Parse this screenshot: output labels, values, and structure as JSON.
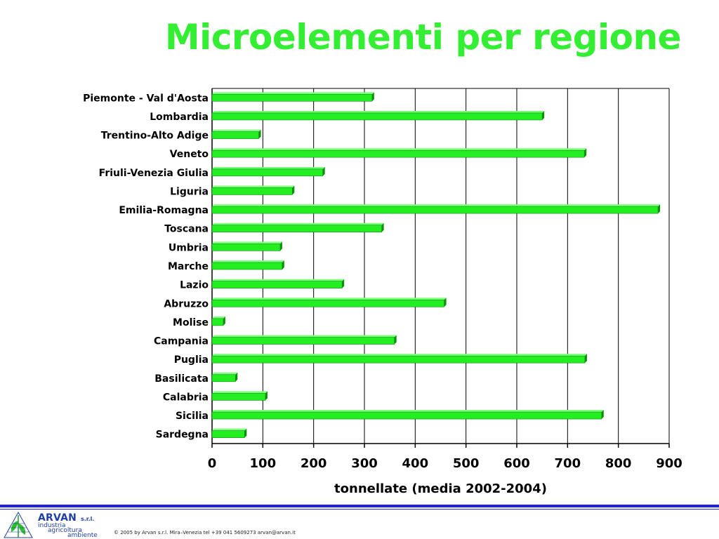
{
  "title": "Microelementi per regione",
  "colors": {
    "title": "#33ee33",
    "bar": "#22ee22",
    "bar_shade": "#0d8f0d",
    "axis": "#000000",
    "footer": "#1f1fe0",
    "logo": "#1f3fa8"
  },
  "chart_data": {
    "type": "bar",
    "orientation": "horizontal",
    "categories": [
      "Piemonte - Val d'Aosta",
      "Lombardia",
      "Trentino-Alto Adige",
      "Veneto",
      "Friuli-Venezia Giulia",
      "Liguria",
      "Emilia-Romagna",
      "Toscana",
      "Umbria",
      "Marche",
      "Lazio",
      "Abruzzo",
      "Molise",
      "Campania",
      "Puglia",
      "Basilicata",
      "Calabria",
      "Sicilia",
      "Sardegna"
    ],
    "values": [
      315,
      650,
      92,
      733,
      218,
      158,
      878,
      334,
      134,
      138,
      256,
      457,
      22,
      359,
      734,
      46,
      105,
      767,
      64
    ],
    "xlabel": "tonnellate (media 2002-2004)",
    "ylabel": "",
    "xlim": [
      0,
      900
    ],
    "xticks": [
      0,
      100,
      200,
      300,
      400,
      500,
      600,
      700,
      800,
      900
    ],
    "grid": "vertical",
    "legend": "none"
  },
  "footer": {
    "logo_name": "ARVAN",
    "logo_suffix": "s.r.l.",
    "logo_line1": "industria",
    "logo_line2": "agricoltura",
    "logo_line3": "ambiente",
    "copyright": "© 2005 by Arvan s.r.l. Mira–Venezia tel +39 041 5609273 arvan@arvan.it"
  }
}
